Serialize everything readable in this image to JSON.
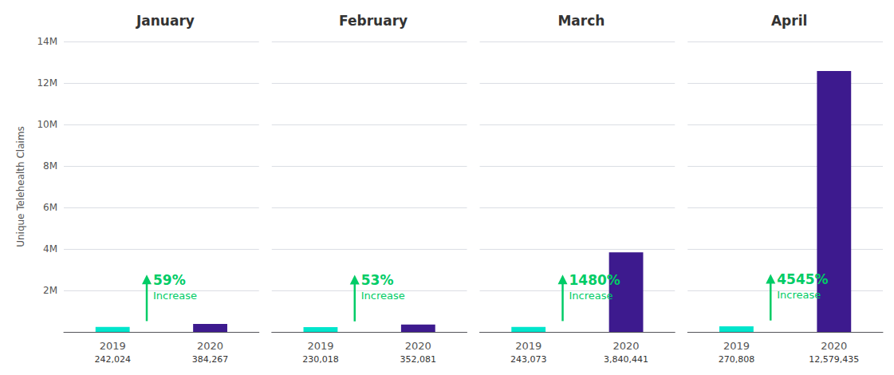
{
  "chart_data": [
    {
      "type": "bar",
      "title": "January",
      "categories": [
        "2019",
        "2020"
      ],
      "values": [
        242024,
        384267
      ],
      "value_labels": [
        "242,024",
        "384,267"
      ],
      "data_labels": true,
      "colors": [
        "#00e5cc",
        "#3d1a8e"
      ],
      "ylabel": "Unique Telehealth Claims",
      "ylim": [
        0,
        14000000
      ],
      "yticks": [
        {
          "value": 0,
          "label": ""
        },
        {
          "value": 2000000,
          "label": "2M"
        },
        {
          "value": 4000000,
          "label": "4M"
        },
        {
          "value": 6000000,
          "label": "6M"
        },
        {
          "value": 8000000,
          "label": "8M"
        },
        {
          "value": 10000000,
          "label": "10M"
        },
        {
          "value": 12000000,
          "label": "12M"
        },
        {
          "value": 14000000,
          "label": "14M"
        }
      ],
      "grid": true,
      "annotations": [
        {
          "text": "59%",
          "color": "#00cc66"
        },
        {
          "text": "Increase",
          "color": "#00cc66"
        }
      ]
    },
    {
      "type": "bar",
      "title": "February",
      "categories": [
        "2019",
        "2020"
      ],
      "values": [
        230018,
        352081
      ],
      "value_labels": [
        "230,018",
        "352,081"
      ],
      "data_labels": true,
      "colors": [
        "#00e5cc",
        "#3d1a8e"
      ],
      "ylim": [
        0,
        14000000
      ],
      "yticks": [
        0,
        2000000,
        4000000,
        6000000,
        8000000,
        10000000,
        12000000,
        14000000
      ],
      "tick_labels": "x",
      "grid": true,
      "annotations": [
        {
          "text": "53%",
          "color": "#00cc66"
        },
        {
          "text": "Increase",
          "color": "#00cc66"
        }
      ]
    },
    {
      "type": "bar",
      "title": "March",
      "categories": [
        "2019",
        "2020"
      ],
      "values": [
        243073,
        3840441
      ],
      "value_labels": [
        "243,073",
        "3,840,441"
      ],
      "data_labels": true,
      "colors": [
        "#00e5cc",
        "#3d1a8e"
      ],
      "ylim": [
        0,
        14000000
      ],
      "yticks": [
        0,
        2000000,
        4000000,
        6000000,
        8000000,
        10000000,
        12000000,
        14000000
      ],
      "tick_labels": "x",
      "grid": true,
      "annotations": [
        {
          "text": "1480%",
          "color": "#00cc66"
        },
        {
          "text": "Increase",
          "color": "#00cc66"
        }
      ]
    },
    {
      "type": "bar",
      "title": "April",
      "categories": [
        "2019",
        "2020"
      ],
      "values": [
        270808,
        12579435
      ],
      "value_labels": [
        "270,808",
        "12,579,435"
      ],
      "data_labels": true,
      "colors": [
        "#00e5cc",
        "#3d1a8e"
      ],
      "ylim": [
        0,
        14000000
      ],
      "yticks": [
        0,
        2000000,
        4000000,
        6000000,
        8000000,
        10000000,
        12000000,
        14000000
      ],
      "tick_labels": "x",
      "grid": true,
      "annotations": [
        {
          "text": "4545%",
          "color": "#00cc66"
        },
        {
          "text": "Increase",
          "color": "#00cc66"
        }
      ]
    }
  ]
}
